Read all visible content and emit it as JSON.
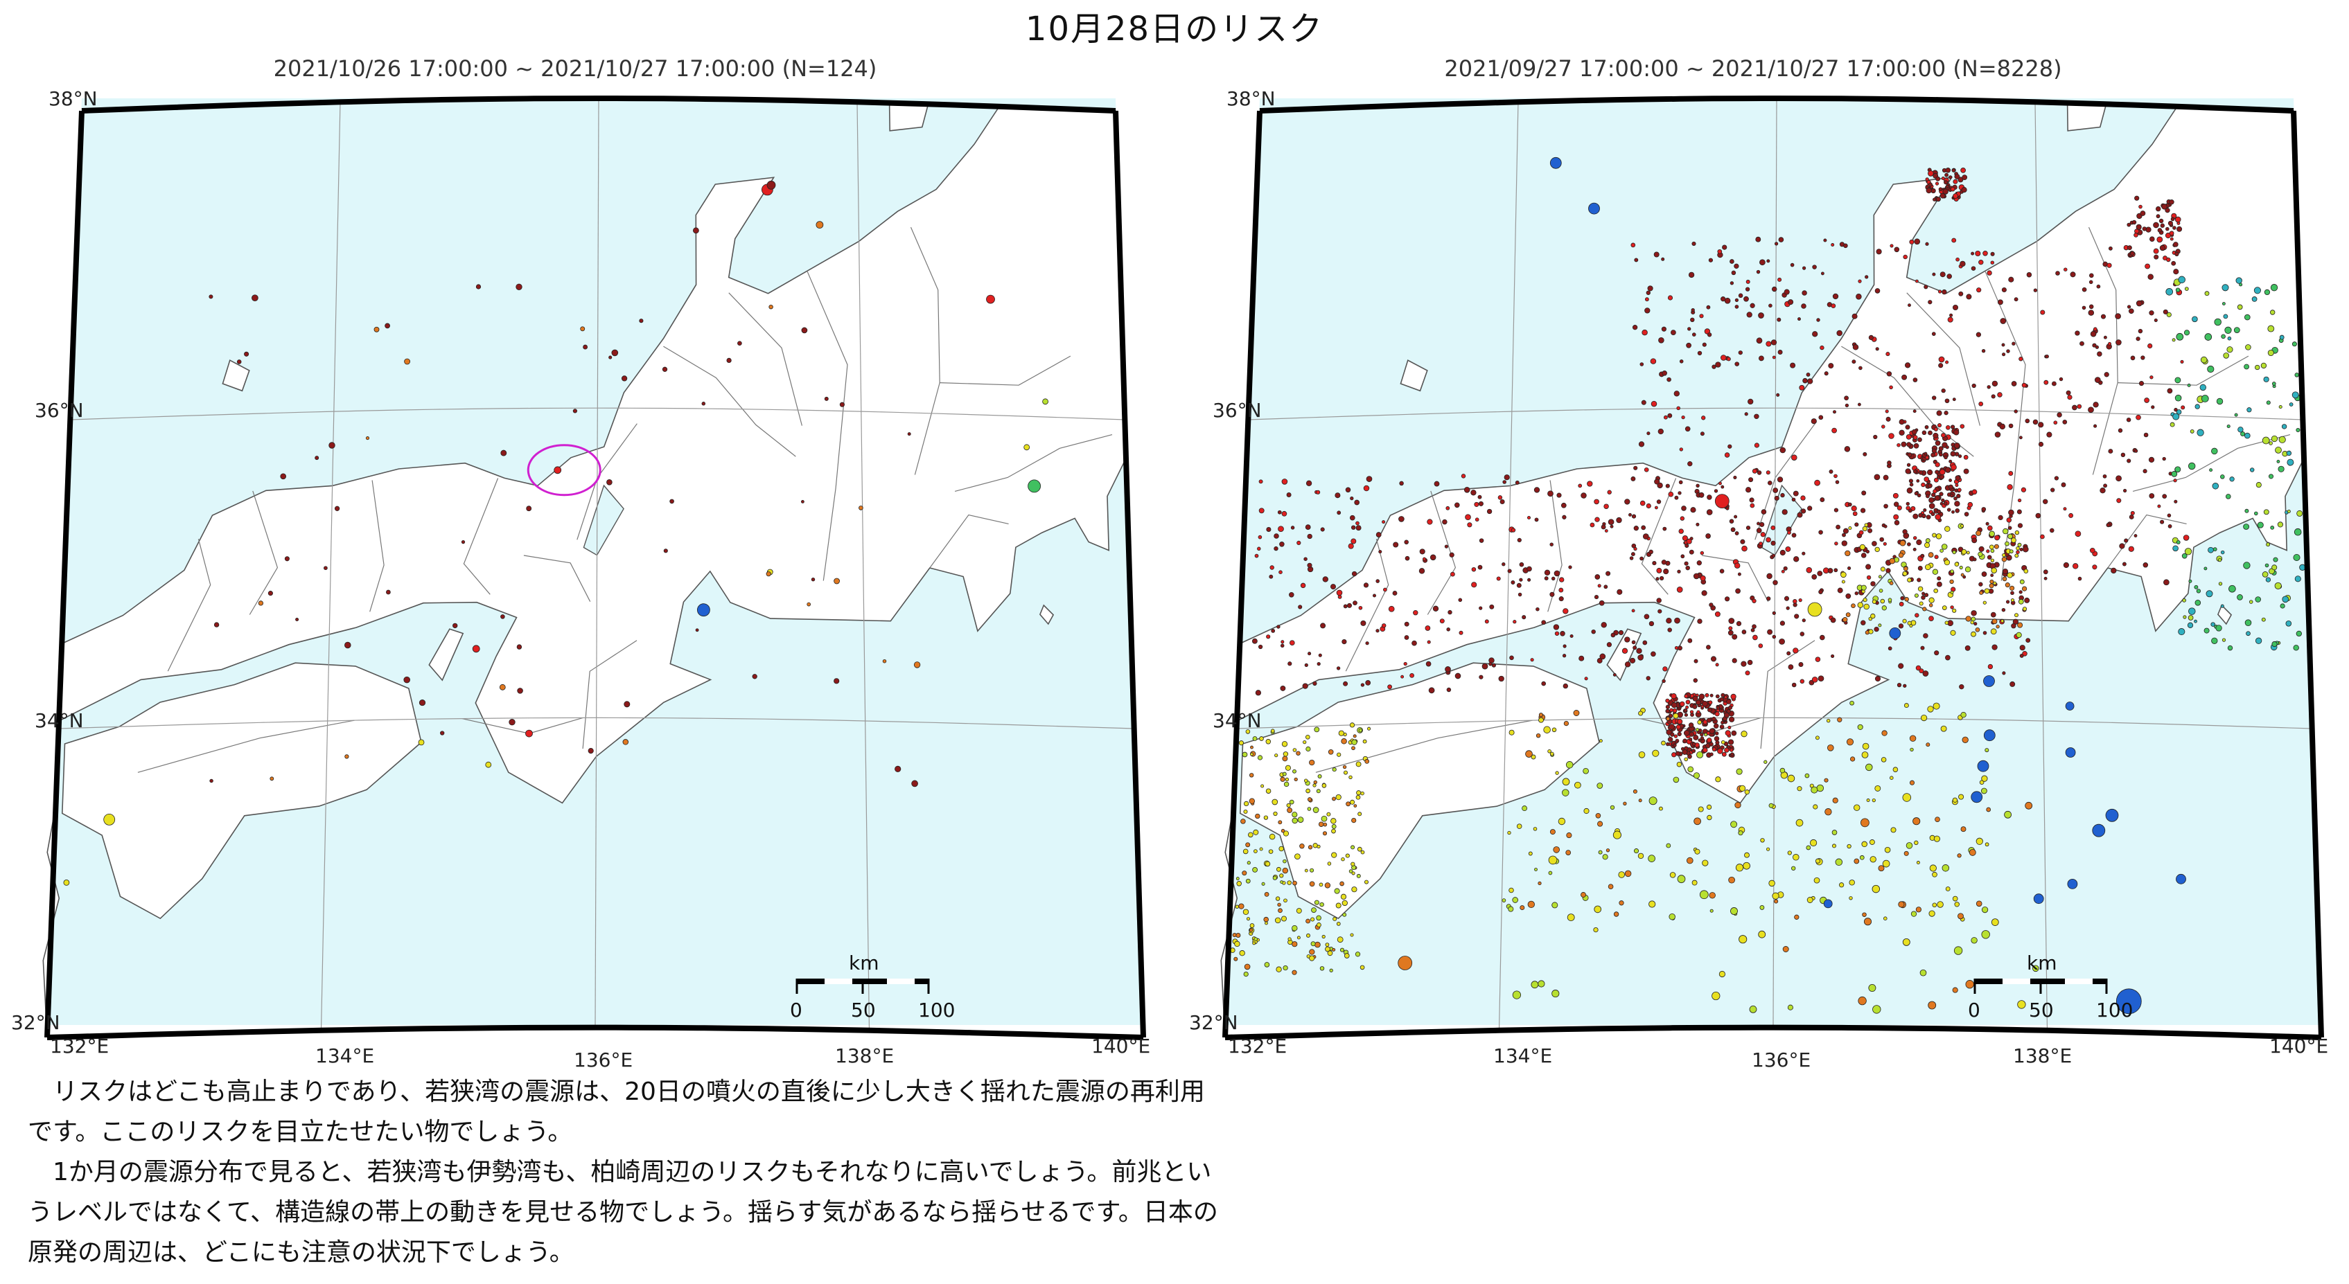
{
  "page": {
    "title": "10月28日のリスク"
  },
  "maps": [
    {
      "id": "left",
      "period_label": "2021/10/26 17:00:00 ~ 2021/10/27 17:00:00 (N=124)",
      "lat_labels": [
        "38°N",
        "36°N",
        "34°N",
        "32°N"
      ],
      "lon_labels": [
        "132°E",
        "134°E",
        "136°E",
        "138°E",
        "140°E"
      ],
      "scale": {
        "unit": "km",
        "ticks": [
          "0",
          "50",
          "100"
        ]
      },
      "highlight_marker": "magenta-circle"
    },
    {
      "id": "right",
      "period_label": "2021/09/27 17:00:00 ~ 2021/10/27 17:00:00 (N=8228)",
      "lat_labels": [
        "38°N",
        "36°N",
        "34°N",
        "32°N"
      ],
      "lon_labels": [
        "132°E",
        "134°E",
        "136°E",
        "138°E",
        "140°E"
      ],
      "scale": {
        "unit": "km",
        "ticks": [
          "0",
          "50",
          "100"
        ]
      }
    }
  ],
  "colors": {
    "sea": "#dff7fa",
    "land": "#ffffff",
    "border": "#000000",
    "deep_red": "#8b1a1a",
    "red": "#e02020",
    "orange": "#e07820",
    "yellow": "#e8e020",
    "yellow_green": "#b8e030",
    "green": "#40c060",
    "cyan": "#30b0c0",
    "blue": "#2060d0",
    "highlight": "#d020d0"
  },
  "commentary": [
    "リスクはどこも高止まりであり、若狭湾の震源は、20日の噴火の直後に少し大きく揺れた震源の再利用です。ここのリスクを目立たせたい物でしょう。",
    "1か月の震源分布で見ると、若狭湾も伊勢湾も、柏崎周辺のリスクもそれなりに高いでしょう。前兆というレベルではなくて、構造線の帯上の動きを見せる物でしょう。揺らす気があるなら揺らせるです。日本の原発の周辺は、どこにも注意の状況下でしょう。"
  ]
}
